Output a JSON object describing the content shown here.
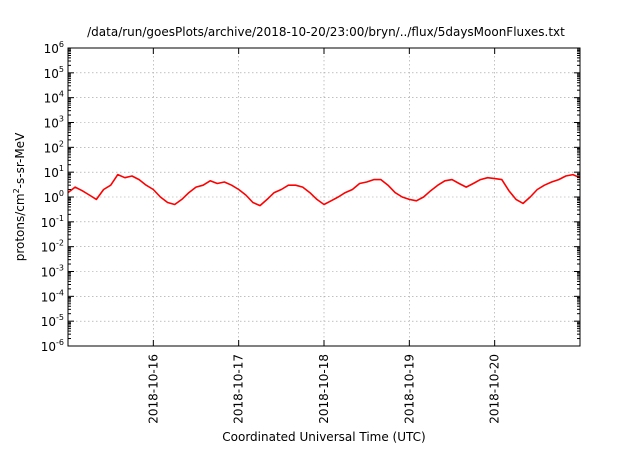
{
  "chart_data": {
    "type": "line",
    "title": "/data/run/goesPlots/archive/2018-10-20/23:00/bryn/../flux/5daysMoonFluxes.txt",
    "xlabel": "Coordinated Universal Time (UTC)",
    "ylabel": {
      "base": "protons/cm",
      "sup": "2",
      "rest": "-s-sr-MeV"
    },
    "yscale": "log",
    "ylim": [
      1e-06,
      1000000.0
    ],
    "xlim": [
      "2018-10-15T00:00",
      "2018-10-21T00:00"
    ],
    "grid": true,
    "legend": "none",
    "x_ticks": [
      {
        "value": "2018-10-16T00:00",
        "label": "2018-10-16"
      },
      {
        "value": "2018-10-17T00:00",
        "label": "2018-10-17"
      },
      {
        "value": "2018-10-18T00:00",
        "label": "2018-10-18"
      },
      {
        "value": "2018-10-19T00:00",
        "label": "2018-10-19"
      },
      {
        "value": "2018-10-20T00:00",
        "label": "2018-10-20"
      }
    ],
    "y_ticks": [
      {
        "value": 1e-06,
        "base": "10",
        "exp": "-6"
      },
      {
        "value": 1e-05,
        "base": "10",
        "exp": "-5"
      },
      {
        "value": 0.0001,
        "base": "10",
        "exp": "-4"
      },
      {
        "value": 0.001,
        "base": "10",
        "exp": "-3"
      },
      {
        "value": 0.01,
        "base": "10",
        "exp": "-2"
      },
      {
        "value": 0.1,
        "base": "10",
        "exp": "-1"
      },
      {
        "value": 1,
        "base": "10",
        "exp": "0"
      },
      {
        "value": 10,
        "base": "10",
        "exp": "1"
      },
      {
        "value": 100,
        "base": "10",
        "exp": "2"
      },
      {
        "value": 1000,
        "base": "10",
        "exp": "3"
      },
      {
        "value": 10000,
        "base": "10",
        "exp": "4"
      },
      {
        "value": 100000,
        "base": "10",
        "exp": "5"
      },
      {
        "value": 1000000,
        "base": "10",
        "exp": "6"
      }
    ],
    "series": [
      {
        "color": "#ff0000",
        "x": [
          "2018-10-15T00:00",
          "2018-10-15T02:00",
          "2018-10-15T04:00",
          "2018-10-15T06:00",
          "2018-10-15T08:00",
          "2018-10-15T10:00",
          "2018-10-15T12:00",
          "2018-10-15T14:00",
          "2018-10-15T16:00",
          "2018-10-15T18:00",
          "2018-10-15T20:00",
          "2018-10-15T22:00",
          "2018-10-16T00:00",
          "2018-10-16T02:00",
          "2018-10-16T04:00",
          "2018-10-16T06:00",
          "2018-10-16T08:00",
          "2018-10-16T10:00",
          "2018-10-16T12:00",
          "2018-10-16T14:00",
          "2018-10-16T16:00",
          "2018-10-16T18:00",
          "2018-10-16T20:00",
          "2018-10-16T22:00",
          "2018-10-17T00:00",
          "2018-10-17T02:00",
          "2018-10-17T04:00",
          "2018-10-17T06:00",
          "2018-10-17T08:00",
          "2018-10-17T10:00",
          "2018-10-17T12:00",
          "2018-10-17T14:00",
          "2018-10-17T16:00",
          "2018-10-17T18:00",
          "2018-10-17T20:00",
          "2018-10-17T22:00",
          "2018-10-18T00:00",
          "2018-10-18T02:00",
          "2018-10-18T04:00",
          "2018-10-18T06:00",
          "2018-10-18T08:00",
          "2018-10-18T10:00",
          "2018-10-18T12:00",
          "2018-10-18T14:00",
          "2018-10-18T16:00",
          "2018-10-18T18:00",
          "2018-10-18T20:00",
          "2018-10-18T22:00",
          "2018-10-19T00:00",
          "2018-10-19T02:00",
          "2018-10-19T04:00",
          "2018-10-19T06:00",
          "2018-10-19T08:00",
          "2018-10-19T10:00",
          "2018-10-19T12:00",
          "2018-10-19T14:00",
          "2018-10-19T16:00",
          "2018-10-19T18:00",
          "2018-10-19T20:00",
          "2018-10-19T22:00",
          "2018-10-20T00:00",
          "2018-10-20T02:00",
          "2018-10-20T04:00",
          "2018-10-20T06:00",
          "2018-10-20T08:00",
          "2018-10-20T10:00",
          "2018-10-20T12:00",
          "2018-10-20T14:00",
          "2018-10-20T16:00",
          "2018-10-20T18:00",
          "2018-10-20T20:00",
          "2018-10-20T22:00",
          "2018-10-21T00:00"
        ],
        "values": [
          1.5,
          2.5,
          1.8,
          1.2,
          0.8,
          2.0,
          3.0,
          8.0,
          6.0,
          7.0,
          5.0,
          3.0,
          2.0,
          1.0,
          0.6,
          0.5,
          0.8,
          1.5,
          2.5,
          3.0,
          4.5,
          3.5,
          4.0,
          3.0,
          2.0,
          1.2,
          0.6,
          0.45,
          0.8,
          1.5,
          2.0,
          3.0,
          3.0,
          2.5,
          1.5,
          0.8,
          0.5,
          0.7,
          1.0,
          1.5,
          2.0,
          3.5,
          4.0,
          5.0,
          5.0,
          3.0,
          1.5,
          1.0,
          0.8,
          0.7,
          1.0,
          1.8,
          3.0,
          4.5,
          5.0,
          3.5,
          2.5,
          3.5,
          5.0,
          6.0,
          5.5,
          5.0,
          1.8,
          0.8,
          0.55,
          1.0,
          2.0,
          3.0,
          4.0,
          5.0,
          7.0,
          8.0,
          6.0
        ]
      }
    ]
  }
}
